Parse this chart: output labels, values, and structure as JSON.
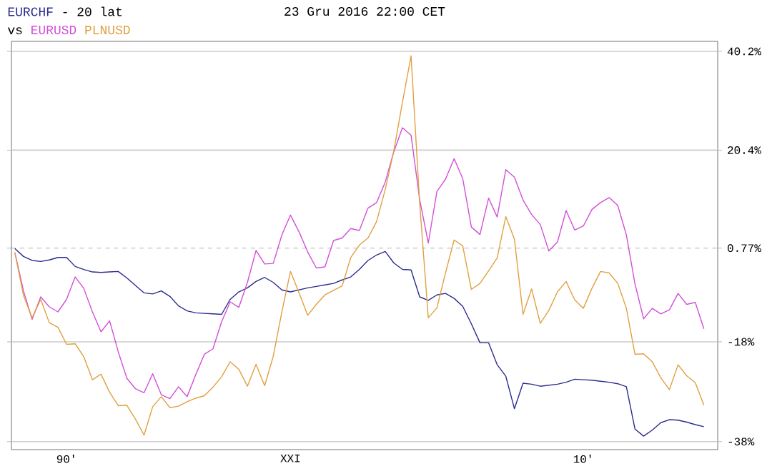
{
  "chart_data": {
    "type": "line",
    "title": "- 20 lat",
    "subtitle": "23 Gru 2016 22:00 CET",
    "legend_title": "vs",
    "grid": "y",
    "line_style": "solid",
    "categories": [
      null,
      null,
      null,
      null,
      null,
      null,
      "90'",
      null,
      null,
      null,
      null,
      null,
      null,
      null,
      null,
      null,
      null,
      null,
      null,
      null,
      null,
      null,
      null,
      null,
      null,
      null,
      null,
      null,
      null,
      null,
      null,
      null,
      "XXI",
      null,
      null,
      null,
      null,
      null,
      null,
      null,
      null,
      null,
      null,
      null,
      null,
      null,
      null,
      null,
      null,
      null,
      null,
      null,
      null,
      null,
      null,
      null,
      null,
      null,
      null,
      null,
      null,
      null,
      null,
      null,
      null,
      null,
      "10'",
      null,
      null,
      null,
      null,
      null,
      null,
      null,
      null,
      null,
      null,
      null,
      null,
      null,
      null
    ],
    "ylim": [
      -39.6,
      42.2
    ],
    "yticks": [
      {
        "value": 40.2,
        "label": "40.2%"
      },
      {
        "value": 20.4,
        "label": "20.4%"
      },
      {
        "value": 0.77,
        "label": "0.77%"
      },
      {
        "value": -18,
        "label": "-18%"
      },
      {
        "value": -38,
        "label": "-38%"
      }
    ],
    "ref_lines": [
      {
        "axis": "y",
        "value": 0.77,
        "line_style": "dashed",
        "color": "#999999"
      }
    ],
    "series": [
      {
        "name": "EURCHF",
        "color": "#2b2b8f",
        "values": [
          0.7,
          -0.9,
          -1.7,
          -1.9,
          -1.6,
          -1.1,
          -1.1,
          -2.9,
          -3.5,
          -4.0,
          -4.1,
          -4.0,
          -3.9,
          -5.2,
          -6.7,
          -8.2,
          -8.4,
          -7.8,
          -8.9,
          -10.8,
          -11.8,
          -12.2,
          -12.3,
          -12.4,
          -12.5,
          -9.5,
          -8.0,
          -7.2,
          -5.9,
          -5.1,
          -6.1,
          -7.6,
          -8.0,
          -7.6,
          -7.2,
          -6.9,
          -6.6,
          -6.3,
          -5.6,
          -5.0,
          -3.5,
          -1.7,
          -0.6,
          0.1,
          -2.2,
          -3.5,
          -3.6,
          -9.0,
          -9.7,
          -8.6,
          -8.3,
          -9.3,
          -10.9,
          -14.4,
          -18.2,
          -18.2,
          -22.6,
          -24.9,
          -31.4,
          -26.3,
          -26.5,
          -26.9,
          -26.7,
          -26.5,
          -26.1,
          -25.5,
          -25.6,
          -25.7,
          -25.9,
          -26.1,
          -26.4,
          -27.0,
          -35.5,
          -36.9,
          -35.7,
          -34.2,
          -33.6,
          -33.7,
          -34.1,
          -34.6,
          -35.0
        ]
      },
      {
        "name": "EURUSD",
        "color": "#d24fd8",
        "values": [
          -0.1,
          -7.8,
          -13.5,
          -9.0,
          -11.0,
          -12.0,
          -9.5,
          -5.0,
          -7.3,
          -12.0,
          -16.0,
          -13.8,
          -20.0,
          -25.3,
          -27.4,
          -28.2,
          -24.4,
          -28.6,
          -29.4,
          -27.0,
          -29.0,
          -24.6,
          -20.5,
          -19.4,
          -14.0,
          -10.0,
          -11.1,
          -6.1,
          0.3,
          -2.4,
          -2.3,
          3.4,
          7.4,
          4.0,
          0.0,
          -3.2,
          -3.0,
          2.3,
          2.8,
          4.7,
          4.3,
          8.8,
          9.9,
          14.0,
          20.1,
          24.9,
          23.4,
          10.5,
          1.8,
          12.1,
          14.6,
          18.7,
          14.7,
          5.0,
          3.5,
          10.8,
          7.0,
          16.5,
          15.0,
          10.4,
          7.5,
          5.5,
          0.2,
          2.0,
          8.3,
          4.4,
          5.2,
          8.5,
          9.9,
          10.9,
          9.3,
          3.4,
          -6.4,
          -13.4,
          -11.3,
          -12.4,
          -11.6,
          -8.3,
          -10.5,
          -10.1,
          -15.4
        ]
      },
      {
        "name": "PLNUSD",
        "color": "#e0a040",
        "values": [
          -0.1,
          -8.7,
          -13.2,
          -9.5,
          -14.2,
          -15.1,
          -18.5,
          -18.4,
          -21.0,
          -25.6,
          -24.5,
          -28.1,
          -30.8,
          -30.7,
          -33.5,
          -36.7,
          -31.0,
          -29.0,
          -31.2,
          -30.9,
          -30.0,
          -29.3,
          -28.8,
          -27.1,
          -25.0,
          -22.0,
          -23.5,
          -26.9,
          -22.5,
          -26.8,
          -20.9,
          -12.0,
          -3.9,
          -8.2,
          -12.7,
          -10.5,
          -8.6,
          -7.7,
          -6.8,
          -1.1,
          1.4,
          2.8,
          6.1,
          12.5,
          20.3,
          30.0,
          39.3,
          9.8,
          -13.2,
          -11.2,
          -4.2,
          2.4,
          1.2,
          -7.5,
          -6.3,
          -3.8,
          -1.2,
          7.1,
          2.6,
          -12.5,
          -7.4,
          -14.3,
          -11.7,
          -8.0,
          -5.9,
          -9.6,
          -11.3,
          -7.3,
          -3.9,
          -4.2,
          -6.3,
          -11.3,
          -20.5,
          -20.4,
          -22.0,
          -25.2,
          -27.6,
          -22.6,
          -24.8,
          -26.2,
          -30.7
        ]
      }
    ]
  }
}
